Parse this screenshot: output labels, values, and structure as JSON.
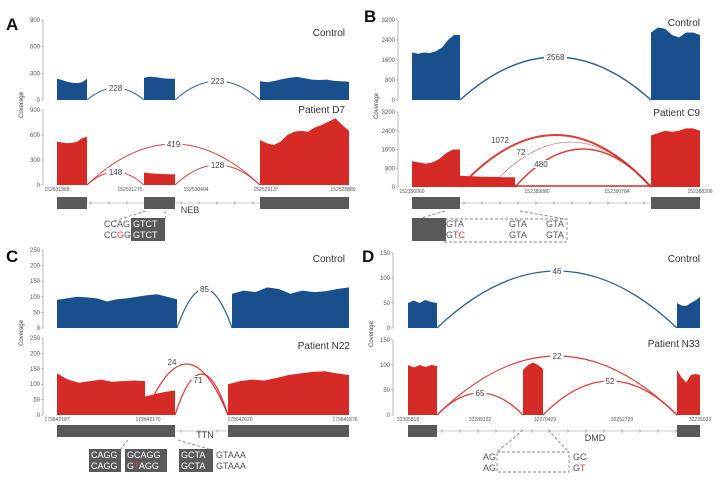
{
  "colors": {
    "control": "#1a4f8e",
    "patient": "#d62a27",
    "exon": "#595959",
    "axis": "#999999",
    "mutation": "#e0403c"
  },
  "chart_data": [
    {
      "panel": "A",
      "type": "area",
      "gene": "NEB",
      "ylabel": "Coverage",
      "x_ticks": [
        "152531968",
        "152531275",
        "152530404",
        "152529137",
        "152528889"
      ],
      "tracks": [
        {
          "name": "Control",
          "ylim": [
            0,
            900
          ],
          "yticks": [
            "0",
            "300",
            "600",
            "900"
          ],
          "coverage": [
            [
              240,
              225,
              205,
              195,
              190,
              200,
              240
            ],
            [
              250,
              262,
              255,
              245,
              240,
              238
            ],
            [
              210,
              200,
              215,
              235,
              250,
              260,
              245,
              230,
              225,
              230,
              215,
              210,
              205
            ]
          ],
          "junctions": [
            {
              "count": "228"
            },
            {
              "count": "223"
            }
          ]
        },
        {
          "name": "Patient D7",
          "ylim": [
            0,
            900
          ],
          "yticks": [
            "0",
            "300",
            "600",
            "900"
          ],
          "coverage": [
            [
              520,
              510,
              500,
              505,
              520,
              560,
              580
            ],
            [
              150,
              140,
              135,
              132,
              130,
              130
            ],
            [
              540,
              500,
              480,
              520,
              600,
              640,
              650,
              640,
              690,
              720,
              760,
              800,
              720,
              650
            ]
          ],
          "junctions": [
            {
              "count": "419"
            },
            {
              "count": "148"
            },
            {
              "count": "128"
            }
          ]
        }
      ],
      "sequence": [
        {
          "boxed": false,
          "rows": [
            [
              {
                "t": "CCAG"
              }
            ],
            [
              {
                "t": "CC"
              },
              {
                "t": "G",
                "mut": true
              },
              {
                "t": "G"
              }
            ]
          ]
        },
        {
          "boxed": true,
          "rows": [
            [
              {
                "t": "GTCT"
              }
            ],
            [
              {
                "t": "GTCT"
              }
            ]
          ]
        }
      ]
    },
    {
      "panel": "B",
      "type": "area",
      "gene": "",
      "ylabel": "Coverage",
      "x_ticks": [
        "152390060",
        "152389880",
        "152390784",
        "152388306"
      ],
      "tracks": [
        {
          "name": "Control",
          "ylim": [
            0,
            3200
          ],
          "yticks": [
            "0",
            "800",
            "1600",
            "2400",
            "3200"
          ],
          "coverage": [
            [
              1900,
              1850,
              1900,
              1880,
              1950,
              2100,
              2400,
              2600,
              2600
            ],
            [
              2700,
              2900,
              2850,
              2600,
              2500,
              2700,
              2700,
              2600
            ]
          ],
          "junctions": [
            {
              "count": "2568"
            }
          ]
        },
        {
          "name": "Patient C9",
          "ylim": [
            0,
            3200
          ],
          "yticks": [
            "0",
            "800",
            "1600",
            "2400",
            "3200"
          ],
          "coverage": [
            [
              1100,
              1050,
              1000,
              1050,
              1200,
              1450,
              1600,
              1600
            ],
            [
              480,
              460,
              440,
              430,
              420,
              420
            ],
            [
              2200,
              2300,
              2400,
              2350,
              2400,
              2500,
              2500,
              2400
            ]
          ],
          "junctions": [
            {
              "count": "1072"
            },
            {
              "count": "72"
            },
            {
              "count": "480"
            }
          ]
        }
      ],
      "sequence": [
        {
          "boxed": "filled",
          "rows": [
            [
              {
                "t": ""
              }
            ],
            [
              {
                "t": ""
              }
            ]
          ]
        },
        {
          "boxed": false,
          "rows": [
            [
              {
                "t": "GTA"
              }
            ],
            [
              {
                "t": "GT"
              },
              {
                "t": "C",
                "mut": true
              }
            ]
          ]
        },
        {
          "boxed": false,
          "rows": [
            [
              {
                "t": "GTA"
              }
            ],
            [
              {
                "t": "GTA"
              }
            ]
          ]
        },
        {
          "boxed": false,
          "rows": [
            [
              {
                "t": "GTA"
              }
            ],
            [
              {
                "t": "GTA"
              }
            ]
          ]
        }
      ]
    },
    {
      "panel": "C",
      "type": "area",
      "gene": "TTN",
      "ylabel": "Coverage",
      "x_ticks": [
        "179642187",
        "179642170",
        "179642020",
        "179641876"
      ],
      "tracks": [
        {
          "name": "Control",
          "ylim": [
            0,
            250
          ],
          "yticks": [
            "0",
            "50",
            "100",
            "150",
            "200",
            "250"
          ],
          "coverage": [
            [
              90,
              95,
              100,
              98,
              95,
              85,
              92,
              95,
              100,
              105,
              108,
              100,
              92
            ],
            [
              110,
              120,
              115,
              130,
              125,
              110,
              120,
              115,
              118,
              125,
              130
            ]
          ],
          "junctions": [
            {
              "count": "85"
            }
          ]
        },
        {
          "name": "Patient N22",
          "ylim": [
            0,
            250
          ],
          "yticks": [
            "0",
            "50",
            "100",
            "150",
            "200",
            "250"
          ],
          "coverage": [
            [
              135,
              115,
              105,
              110,
              115,
              108,
              110,
              112,
              110
            ],
            [
              60,
              68,
              75,
              80
            ],
            [
              100,
              110,
              115,
              112,
              120,
              130,
              135,
              140,
              142,
              135,
              130
            ]
          ],
          "junctions": [
            {
              "count": "24"
            },
            {
              "count": "71"
            }
          ]
        }
      ],
      "sequence": [
        {
          "boxed": true,
          "rows": [
            [
              {
                "t": "CAGG"
              }
            ],
            [
              {
                "t": "CAGG"
              }
            ]
          ]
        },
        {
          "boxed": true,
          "rows": [
            [
              {
                "t": "GCAGG"
              }
            ],
            [
              {
                "t": "G"
              },
              {
                "t": "T",
                "mut": true
              },
              {
                "t": "AGG"
              }
            ]
          ]
        },
        {
          "boxed": true,
          "rows": [
            [
              {
                "t": "GCTA"
              }
            ],
            [
              {
                "t": "GCTA"
              }
            ]
          ]
        },
        {
          "boxed": false,
          "rows": [
            [
              {
                "t": "GTAAA"
              }
            ],
            [
              {
                "t": "GTAAA"
              }
            ]
          ]
        }
      ]
    },
    {
      "panel": "D",
      "type": "area",
      "gene": "DMD",
      "ylabel": "Coverage",
      "x_ticks": [
        "32305818",
        "32289122",
        "32270429",
        "32252729",
        "32235033"
      ],
      "tracks": [
        {
          "name": "Control",
          "ylim": [
            0,
            150
          ],
          "yticks": [
            "0",
            "50",
            "100",
            "150"
          ],
          "coverage": [
            [
              50,
              55,
              50,
              56,
              52,
              50
            ],
            [
              50,
              45,
              44,
              50,
              55,
              62
            ]
          ],
          "junctions": [
            {
              "count": "46"
            }
          ]
        },
        {
          "name": "Patient N33",
          "ylim": [
            0,
            150
          ],
          "yticks": [
            "0",
            "50",
            "100",
            "150"
          ],
          "coverage": [
            [
              100,
              95,
              100,
              96,
              100,
              98
            ],
            [
              90,
              100,
              105,
              100,
              92
            ],
            [
              90,
              75,
              65,
              80,
              82,
              80
            ]
          ],
          "junctions": [
            {
              "count": "22"
            },
            {
              "count": "65"
            },
            {
              "count": "52"
            }
          ]
        }
      ],
      "sequence": [
        {
          "boxed": false,
          "rows": [
            [
              {
                "t": "AG"
              }
            ],
            [
              {
                "t": "AG"
              }
            ]
          ]
        },
        {
          "boxed": false,
          "rows": [
            [
              {
                "t": "GC"
              }
            ],
            [
              {
                "t": "G"
              },
              {
                "t": "T",
                "mut": true
              }
            ]
          ]
        }
      ]
    }
  ]
}
